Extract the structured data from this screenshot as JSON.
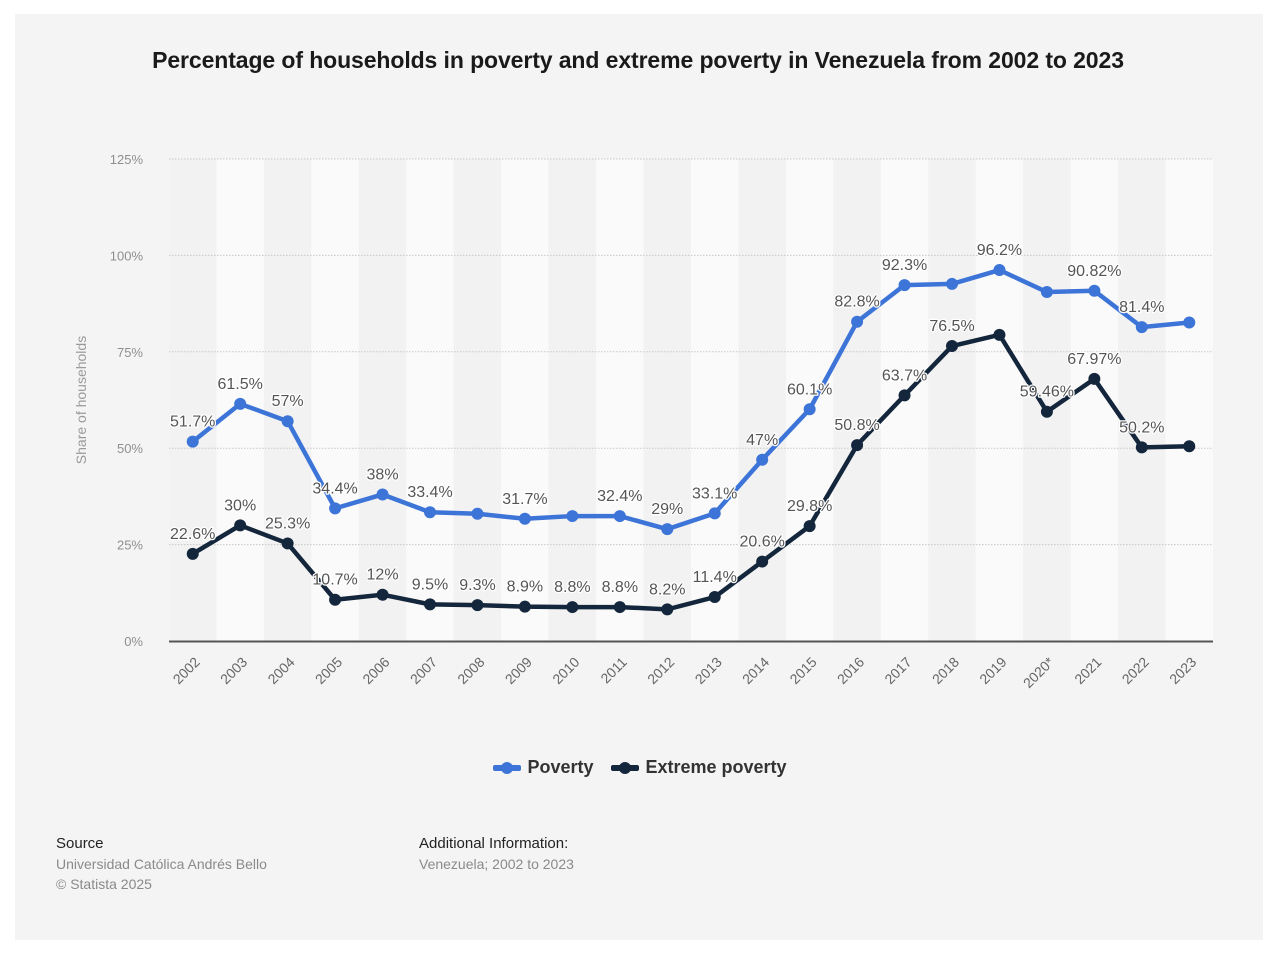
{
  "card": {
    "background": "#f4f4f4"
  },
  "title": "Percentage of households in poverty and extreme poverty in Venezuela from 2002 to 2023",
  "legend": [
    {
      "label": "Poverty",
      "color": "#3d74d8"
    },
    {
      "label": "Extreme poverty",
      "color": "#14263b"
    }
  ],
  "footer": {
    "source_heading": "Source",
    "source_name": "Universidad Católica Andrés Bello",
    "copyright": "© Statista 2025",
    "additional_heading": "Additional Information:",
    "additional_text": "Venezuela; 2002 to 2023"
  },
  "chart_data": {
    "type": "line",
    "title": "Percentage of households in poverty and extreme poverty in Venezuela from 2002 to 2023",
    "xlabel": "",
    "ylabel": "Share of households",
    "ylim": [
      0,
      125
    ],
    "yticks": [
      0,
      25,
      50,
      75,
      100,
      125
    ],
    "ytick_labels": [
      "0%",
      "25%",
      "50%",
      "75%",
      "100%",
      "125%"
    ],
    "grid": true,
    "legend_position": "bottom-center",
    "categories": [
      "2002",
      "2003",
      "2004",
      "2005",
      "2006",
      "2007",
      "2008",
      "2009",
      "2010",
      "2011",
      "2012",
      "2013",
      "2014",
      "2015",
      "2016",
      "2017",
      "2018",
      "2019",
      "2020*",
      "2021",
      "2022",
      "2023"
    ],
    "series": [
      {
        "name": "Poverty",
        "color": "#3d74d8",
        "values": [
          51.7,
          61.5,
          57,
          34.4,
          38,
          33.4,
          33.0,
          31.7,
          32.4,
          32.4,
          29,
          33.1,
          47,
          60.1,
          82.8,
          92.3,
          92.6,
          96.2,
          90.5,
          90.82,
          81.4,
          82.6
        ],
        "labels": [
          "51.7%",
          "61.5%",
          "57%",
          "34.4%",
          "38%",
          "33.4%",
          "",
          "31.7%",
          "",
          "32.4%",
          "29%",
          "33.1%",
          "47%",
          "60.1%",
          "82.8%",
          "92.3%",
          "",
          "96.2%",
          "",
          "90.82%",
          "81.4%",
          ""
        ]
      },
      {
        "name": "Extreme poverty",
        "color": "#14263b",
        "values": [
          22.6,
          30,
          25.3,
          10.7,
          12,
          9.5,
          9.3,
          8.9,
          8.8,
          8.8,
          8.2,
          11.4,
          20.6,
          29.8,
          50.8,
          63.7,
          76.5,
          79.4,
          59.46,
          67.97,
          50.2,
          50.5
        ],
        "labels": [
          "22.6%",
          "30%",
          "25.3%",
          "10.7%",
          "12%",
          "9.5%",
          "9.3%",
          "8.9%",
          "8.8%",
          "8.8%",
          "8.2%",
          "11.4%",
          "20.6%",
          "29.8%",
          "50.8%",
          "63.7%",
          "76.5%",
          "",
          "59.46%",
          "67.97%",
          "50.2%",
          ""
        ]
      }
    ]
  }
}
